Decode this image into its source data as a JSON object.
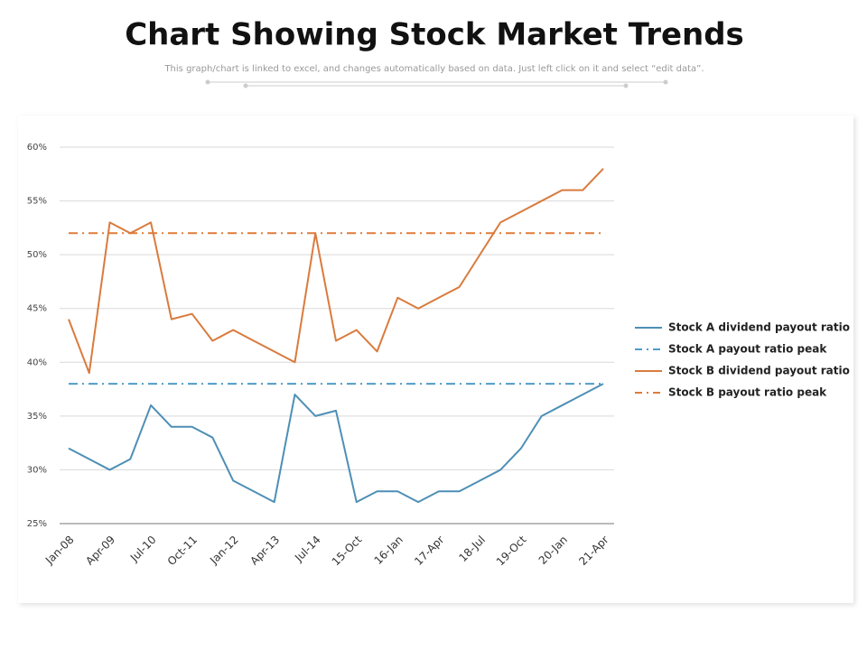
{
  "chart_data": {
    "type": "line",
    "title": "Chart Showing Stock Market Trends",
    "subtitle": "This graph/chart is linked to excel, and changes automatically based on data. Just left click on it and select “edit data”.",
    "categories": [
      "Jan-08",
      null,
      "Apr-09",
      null,
      "Jul-10",
      null,
      "Oct-11",
      null,
      "Jan-12",
      null,
      "Apr-13",
      null,
      "Jul-14",
      null,
      "15-Oct",
      null,
      "16-Jan",
      null,
      "17-Apr",
      null,
      "18-Jul",
      null,
      "19-Oct",
      null,
      "20-Jan",
      null,
      "21-Apr"
    ],
    "series": [
      {
        "name": "Stock A dividend payout ratio",
        "color": "#4e8fb5",
        "dash": "solid",
        "values": [
          32,
          31,
          30,
          31,
          36,
          34,
          34,
          33,
          29,
          28,
          27,
          37,
          35,
          35.5,
          27,
          28,
          28,
          27,
          28,
          28,
          29,
          30,
          32,
          35,
          36,
          37,
          38
        ]
      },
      {
        "name": "Stock A payout ratio peak",
        "color": "#4e9cc9",
        "dash": "dash-dot",
        "values": [
          38,
          38,
          38,
          38,
          38,
          38,
          38,
          38,
          38,
          38,
          38,
          38,
          38,
          38,
          38,
          38,
          38,
          38,
          38,
          38,
          38,
          38,
          38,
          38,
          38,
          38,
          38
        ]
      },
      {
        "name": "Stock B dividend payout ratio",
        "color": "#d97b3d",
        "dash": "solid",
        "values": [
          44,
          39,
          53,
          52,
          53,
          44,
          44.5,
          42,
          43,
          42,
          41,
          40,
          52,
          42,
          43,
          41,
          46,
          45,
          46,
          47,
          50,
          53,
          54,
          55,
          56,
          56,
          58
        ]
      },
      {
        "name": "Stock B payout ratio peak",
        "color": "#e07b39",
        "dash": "dash-dot",
        "values": [
          52,
          52,
          52,
          52,
          52,
          52,
          52,
          52,
          52,
          52,
          52,
          52,
          52,
          52,
          52,
          52,
          52,
          52,
          52,
          52,
          52,
          52,
          52,
          52,
          52,
          52,
          52
        ]
      }
    ],
    "ylim": [
      25,
      60
    ],
    "yticks": [
      {
        "value": 25,
        "label": "25%"
      },
      {
        "value": 30,
        "label": "30%"
      },
      {
        "value": 35,
        "label": "35%"
      },
      {
        "value": 40,
        "label": "40%"
      },
      {
        "value": 45,
        "label": "45%"
      },
      {
        "value": 50,
        "label": "50%"
      },
      {
        "value": 55,
        "label": "55%"
      },
      {
        "value": 60,
        "label": "60%"
      }
    ],
    "grid": true,
    "legend": "right"
  }
}
